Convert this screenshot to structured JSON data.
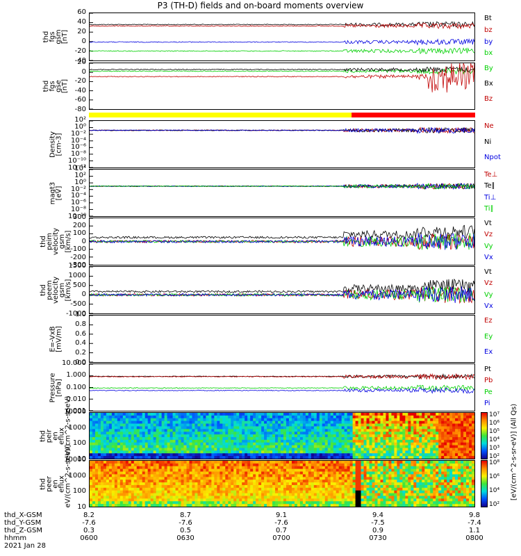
{
  "title": "P3 (TH-D) fields and on-board moments overview",
  "chart_data": [
    {
      "type": "line",
      "ylabel": "thd fgs gsm [nT]",
      "ylim": [
        -40,
        60
      ],
      "y_ticks": [
        "60",
        "40",
        "20",
        "0",
        "-20",
        "-40"
      ],
      "series": [
        {
          "name": "Bt",
          "color": "#000000",
          "level": 36
        },
        {
          "name": "bz",
          "color": "#c00000",
          "level": 33
        },
        {
          "name": "by",
          "color": "#0000e0",
          "level": -1
        },
        {
          "name": "bx",
          "color": "#00d000",
          "level": -20
        }
      ]
    },
    {
      "type": "line",
      "ylabel": "thd fgs gse [nT]",
      "ylim": [
        -90,
        20
      ],
      "y_ticks": [
        "20",
        "0",
        "-20",
        "-40",
        "-60",
        "-80"
      ],
      "series": [
        {
          "name": "By",
          "color": "#00d000",
          "level": 1
        },
        {
          "name": "Bx",
          "color": "#000000",
          "level": 5
        },
        {
          "name": "Bz",
          "color": "#c00000",
          "level": -12
        }
      ]
    },
    {
      "type": "bar",
      "segments": [
        {
          "from": 0,
          "to": 0.68,
          "color": "#ffff00"
        },
        {
          "from": 0.68,
          "to": 1.0,
          "color": "#ff0000"
        }
      ]
    },
    {
      "type": "line",
      "ylabel": "Density [cm-3]",
      "yscale": "log",
      "y_ticks": [
        "10²",
        "10⁰",
        "10⁻²",
        "10⁻⁴",
        "10⁻⁶",
        "10⁻⁸",
        "10⁻¹⁰",
        "10⁻¹²"
      ],
      "series": [
        {
          "name": "Ne",
          "color": "#c00000",
          "level": 0.15
        },
        {
          "name": "Ni",
          "color": "#000000",
          "level": 0.15
        },
        {
          "name": "Npot",
          "color": "#0000e0",
          "level": 0.15
        }
      ]
    },
    {
      "type": "line",
      "ylabel": "magt3 [eV]",
      "yscale": "log",
      "y_ticks": [
        "10⁴",
        "10²",
        "10⁰",
        "10⁻²",
        "10⁻⁴",
        "10⁻⁶",
        "10⁻⁸",
        "10⁻¹⁰"
      ],
      "series": [
        {
          "name": "Te⊥",
          "color": "#c00000",
          "level": 0.1
        },
        {
          "name": "Te∥",
          "color": "#000000",
          "level": 0.1
        },
        {
          "name": "Ti⊥",
          "color": "#0000e0",
          "level": 0.1
        },
        {
          "name": "Ti∥",
          "color": "#00d000",
          "level": 0.1
        }
      ]
    },
    {
      "type": "line",
      "ylabel": "thd peim velocity gsm [km/s]",
      "ylim": [
        -300,
        300
      ],
      "y_ticks": [
        "300",
        "200",
        "100",
        "0",
        "-100",
        "-200",
        "-300"
      ],
      "series": [
        {
          "name": "Vt",
          "color": "#000000",
          "level": 40
        },
        {
          "name": "Vz",
          "color": "#c00000",
          "level": 0
        },
        {
          "name": "Vy",
          "color": "#00d000",
          "level": 0
        },
        {
          "name": "Vx",
          "color": "#0000e0",
          "level": 0
        }
      ]
    },
    {
      "type": "line",
      "ylabel": "thd peem velocity gsm [km/s]",
      "ylim": [
        -1000,
        1500
      ],
      "y_ticks": [
        "1500",
        "1000",
        "500",
        "0",
        "-500",
        "-1000"
      ],
      "series": [
        {
          "name": "Vt",
          "color": "#000000",
          "level": 120
        },
        {
          "name": "Vz",
          "color": "#c00000",
          "level": 0
        },
        {
          "name": "Vy",
          "color": "#00d000",
          "level": 0
        },
        {
          "name": "Vx",
          "color": "#0000e0",
          "level": 0
        }
      ]
    },
    {
      "type": "line",
      "ylabel": "E=-VxB [mV/m]",
      "ylim": [
        0,
        1
      ],
      "y_ticks": [
        "1.0",
        "0.8",
        "0.6",
        "0.4",
        "0.2",
        "0.0"
      ],
      "series": [
        {
          "name": "Ez",
          "color": "#c00000"
        },
        {
          "name": "Ey",
          "color": "#00d000"
        },
        {
          "name": "Ex",
          "color": "#0000e0"
        }
      ]
    },
    {
      "type": "line",
      "ylabel": "Pressure [nPa]",
      "yscale": "log",
      "y_ticks": [
        "10.000",
        "1.000",
        "0.100",
        "0.010",
        "0.001"
      ],
      "series": [
        {
          "name": "Pt",
          "color": "#000000",
          "level": 0.9
        },
        {
          "name": "Pb",
          "color": "#c00000",
          "level": 0.85
        },
        {
          "name": "Pe",
          "color": "#00d000",
          "level": 0.09
        },
        {
          "name": "Pi",
          "color": "#0000e0",
          "level": 0.055
        }
      ]
    },
    {
      "type": "heatmap",
      "ylabel": "thd peir en eflux eV/(cm^2-s-sr-eV)",
      "yscale": "log",
      "y_ticks": [
        "10000",
        "1000",
        "100",
        "10"
      ],
      "colorbar_ticks": [
        "10⁷",
        "10⁶",
        "10⁵",
        "10⁴",
        "10³",
        "10²"
      ],
      "colorbar_label": "[eV/(cm^2-s-sr-eV)]"
    },
    {
      "type": "heatmap",
      "ylabel": "thd peer en eflux eV/(cm^2-s-sr-eV)",
      "yscale": "log",
      "y_ticks": [
        "10000",
        "1000",
        "100",
        "10"
      ],
      "colorbar_ticks": [
        "10⁸",
        "10⁶",
        "10⁴",
        "10²"
      ],
      "colorbar_label": "[eV/(cm^2-s-sr-eV)]"
    }
  ],
  "colorbar_caption": "[eV/(cm^2-s-sr-eV)] (All Qs)",
  "footer": {
    "rows": [
      "thd_X-GSM",
      "thd_Y-GSM",
      "thd_Z-GSM",
      "hhmm",
      "2021 Jan 28"
    ],
    "columns": [
      [
        "8.2",
        "-7.6",
        "0.3",
        "0600"
      ],
      [
        "8.7",
        "-7.6",
        "0.5",
        "0630"
      ],
      [
        "9.1",
        "-7.6",
        "0.7",
        "0700"
      ],
      [
        "9.4",
        "-7.5",
        "0.9",
        "0730"
      ],
      [
        "9.8",
        "-7.4",
        "1.1",
        "0800"
      ]
    ]
  }
}
